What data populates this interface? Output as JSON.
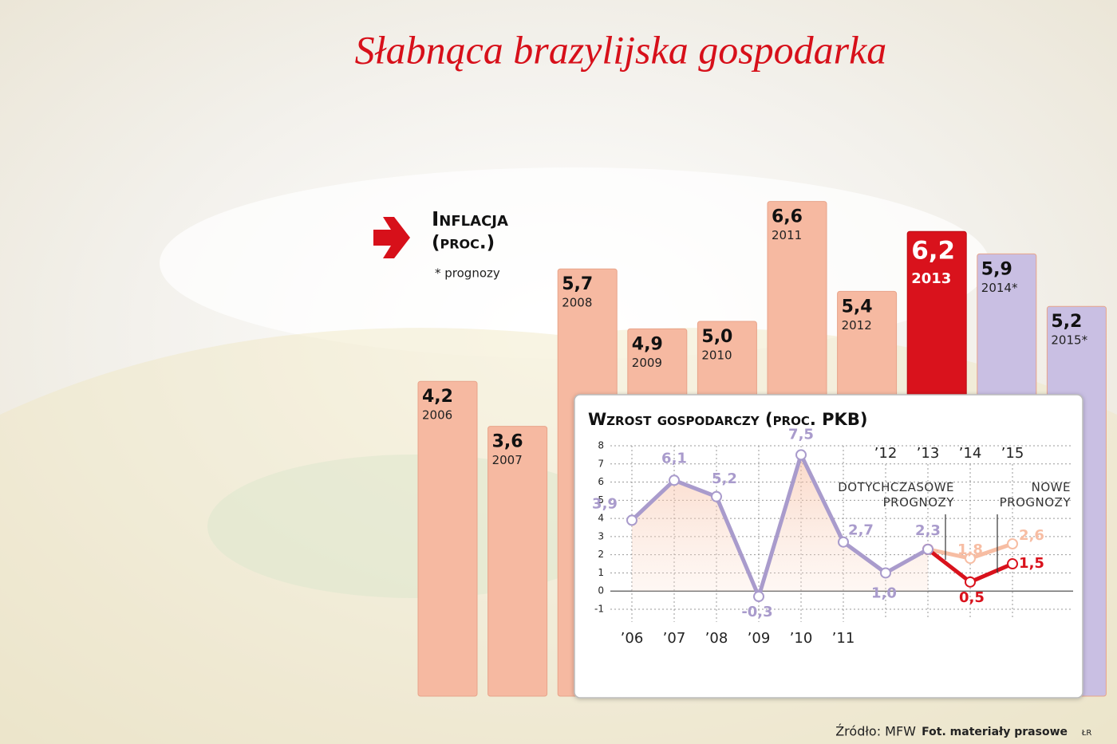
{
  "title": "Słabnąca brazylijska gospodarka",
  "chart_data": [
    {
      "type": "bar",
      "title": "Inflacja",
      "subtitle": "(proc.)",
      "note": "* prognozy",
      "categories": [
        "2006",
        "2007",
        "2008",
        "2009",
        "2010",
        "2011",
        "2012",
        "2013",
        "2014*",
        "2015*"
      ],
      "values": [
        4.2,
        3.6,
        5.7,
        4.9,
        5.0,
        6.6,
        5.4,
        6.2,
        5.9,
        5.2
      ],
      "value_labels": [
        "4,2",
        "3,6",
        "5,7",
        "4,9",
        "5,0",
        "6,6",
        "5,4",
        "6,2",
        "5,9",
        "5,2"
      ],
      "colors": [
        "#f6b9a1",
        "#f6b9a1",
        "#f6b9a1",
        "#f6b9a1",
        "#f6b9a1",
        "#f6b9a1",
        "#f6b9a1",
        "#d9121c",
        "#c9bfe3",
        "#c9bfe3"
      ]
    },
    {
      "type": "line",
      "title": "Wzrost gospodarczy (proc. PKB)",
      "categories": [
        "’06",
        "’07",
        "’08",
        "’09",
        "’10",
        "’11",
        "’12",
        "’13",
        "’14",
        "’15"
      ],
      "series": [
        {
          "color": "#a99bcc",
          "values": [
            3.9,
            6.1,
            5.2,
            -0.3,
            7.5,
            2.7,
            1.0,
            2.3,
            null,
            null
          ],
          "value_labels": [
            "3,9",
            "6,1",
            "5,2",
            "-0,3",
            "7,5",
            "2,7",
            "1,0",
            "2,3",
            null,
            null
          ]
        },
        {
          "name": "DOTYCHCZASOWE PROGNOZY",
          "color": "#f7bda3",
          "values": [
            null,
            null,
            null,
            null,
            null,
            null,
            null,
            2.3,
            1.8,
            2.6
          ],
          "value_labels": [
            null,
            null,
            null,
            null,
            null,
            null,
            null,
            null,
            "1,8",
            "2,6"
          ]
        },
        {
          "name": "NOWE PROGNOZY",
          "color": "#d9121c",
          "values": [
            null,
            null,
            null,
            null,
            null,
            null,
            null,
            2.3,
            0.5,
            1.5
          ],
          "value_labels": [
            null,
            null,
            null,
            null,
            null,
            null,
            null,
            null,
            "0,5",
            "1,5"
          ]
        }
      ],
      "ylim": [
        -1,
        8
      ],
      "yticks": [
        -1,
        0,
        1,
        2,
        3,
        4,
        5,
        6,
        7,
        8
      ],
      "grid": true
    }
  ],
  "footer": {
    "source": "Źródło: MFW",
    "photo": "Fot. materiały prasowe",
    "author": "ŁR"
  }
}
